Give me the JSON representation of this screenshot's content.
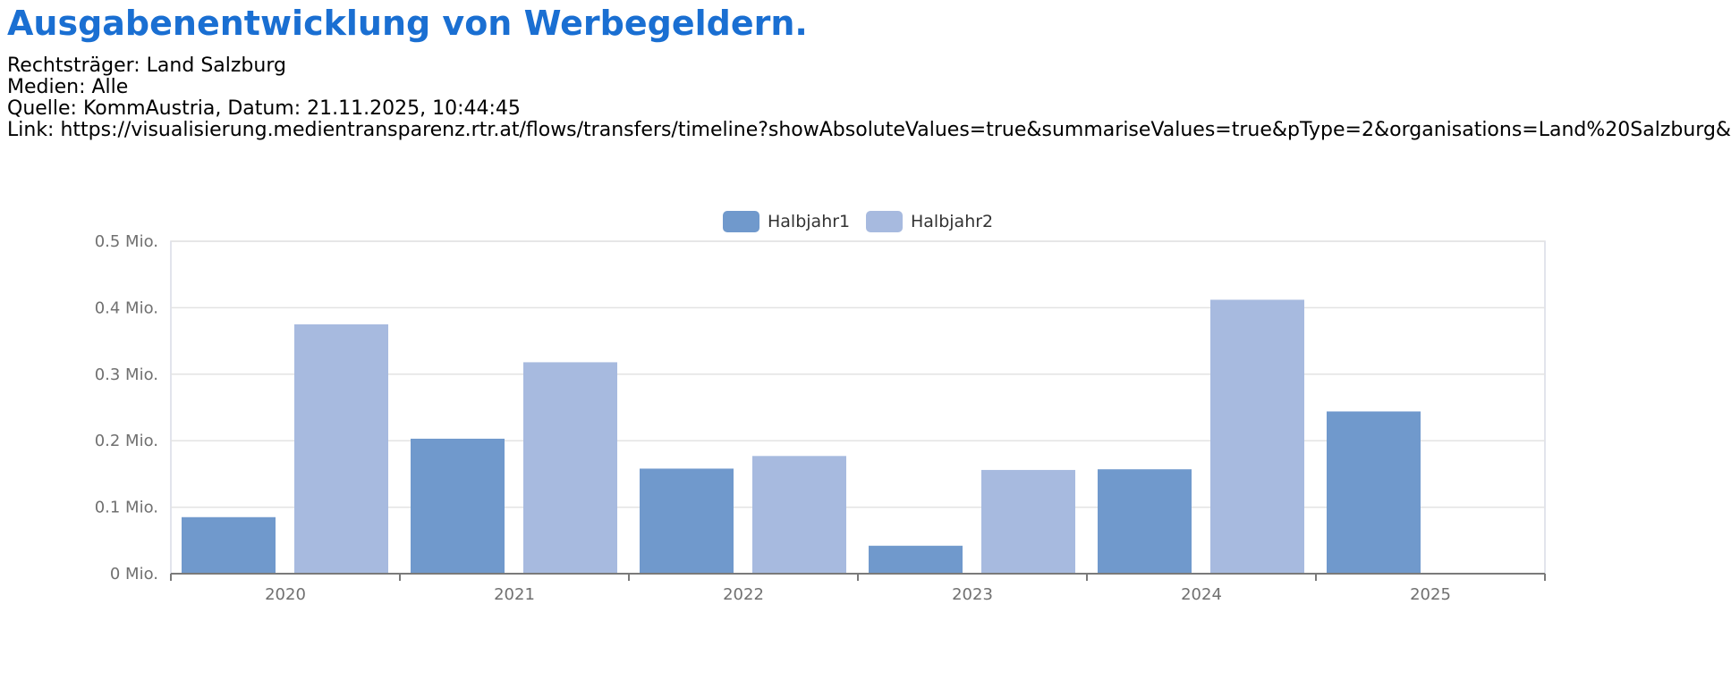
{
  "header": {
    "title": "Ausgabenentwicklung von Werbegeldern.",
    "rechtstraeger": "Rechtsträger: Land Salzburg",
    "medien": "Medien: Alle",
    "quelle": "Quelle: KommAustria, Datum: 21.11.2025, 10:44:45",
    "link": "Link: https://visualisierung.medientransparenz.rtr.at/flows/transfers/timeline?showAbsoluteValues=true&summariseValues=true&pType=2&organisations=Land%20Salzburg&"
  },
  "colors": {
    "title": "#1a6fd2",
    "series1": "#7099cc",
    "series2": "#a7badf",
    "grid": "#e3e3e3",
    "axis": "#7a7a7a"
  },
  "chart_data": {
    "type": "bar",
    "categories": [
      "2020",
      "2021",
      "2022",
      "2023",
      "2024",
      "2025"
    ],
    "series": [
      {
        "name": "Halbjahr1",
        "values": [
          0.085,
          0.203,
          0.158,
          0.042,
          0.157,
          0.244
        ]
      },
      {
        "name": "Halbjahr2",
        "values": [
          0.375,
          0.318,
          0.177,
          0.156,
          0.412,
          0
        ]
      }
    ],
    "y_ticks": [
      "0 Mio.",
      "0.1 Mio.",
      "0.2 Mio.",
      "0.3 Mio.",
      "0.4 Mio.",
      "0.5 Mio."
    ],
    "ylim": [
      0,
      0.5
    ],
    "y_unit": "Mio.",
    "legend_position": "top-center",
    "grid": true
  }
}
